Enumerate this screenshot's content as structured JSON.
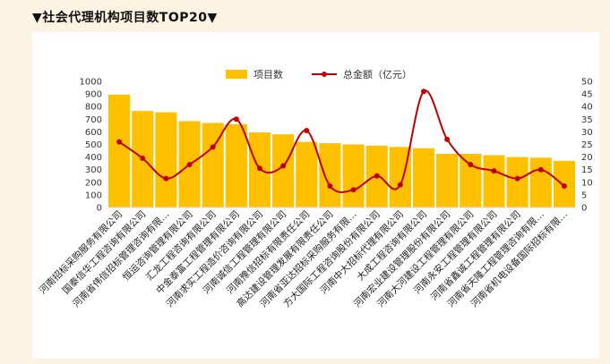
{
  "title": "▼社会代理机构项目数TOP20▼",
  "chart_data": {
    "type": "bar",
    "categories": [
      "河南招标采购服务有限公司",
      "国泰信华工程咨询有限公司",
      "河南省伟信招标管理咨询有限…",
      "恒运咨询管理有限公司",
      "汇龙工程咨询有限公司",
      "中金泰富工程管理有限公司",
      "河南求实工程造价咨询有限公司",
      "河南诚信工程管理有限公司",
      "河南豫信招标有限责任公司",
      "高达建设管理发展有限责任公司",
      "河南省亚达招标采购服务有限…",
      "方大国际工程咨询股份有限公司",
      "河南中大招标代理有限公司",
      "大成工程咨询有限公司",
      "河南宏业建设管理股份有限公司",
      "河南大河建设工程管理有限公司",
      "河南永安工程管理有限公司",
      "河南省鑫诚工程管理有限公司",
      "河南省天隆工程管理咨询有限…",
      "河南省机电设备国际招标有限…"
    ],
    "series": [
      {
        "name": "项目数",
        "chart": "bar",
        "axis": "left",
        "color": "#FFC000",
        "values": [
          895,
          765,
          755,
          685,
          670,
          660,
          595,
          580,
          520,
          510,
          500,
          490,
          480,
          470,
          425,
          425,
          415,
          400,
          395,
          370
        ]
      },
      {
        "name": "总金额（亿元）",
        "chart": "line",
        "axis": "right",
        "color": "#C00000",
        "values": [
          26,
          19.5,
          11.5,
          17,
          24,
          35,
          15.5,
          16.5,
          30.5,
          8.5,
          7,
          12.5,
          9,
          46,
          27,
          17,
          14.5,
          11.5,
          15,
          8.5
        ]
      }
    ],
    "y_left": {
      "min": 0,
      "max": 1000,
      "ticks": [
        0,
        100,
        200,
        300,
        400,
        500,
        600,
        700,
        800,
        900,
        1000
      ]
    },
    "y_right": {
      "min": 0,
      "max": 50,
      "ticks": [
        0,
        5,
        10,
        15,
        20,
        25,
        30,
        35,
        40,
        45,
        50
      ]
    },
    "legend_position": "top-center",
    "grid": false
  }
}
